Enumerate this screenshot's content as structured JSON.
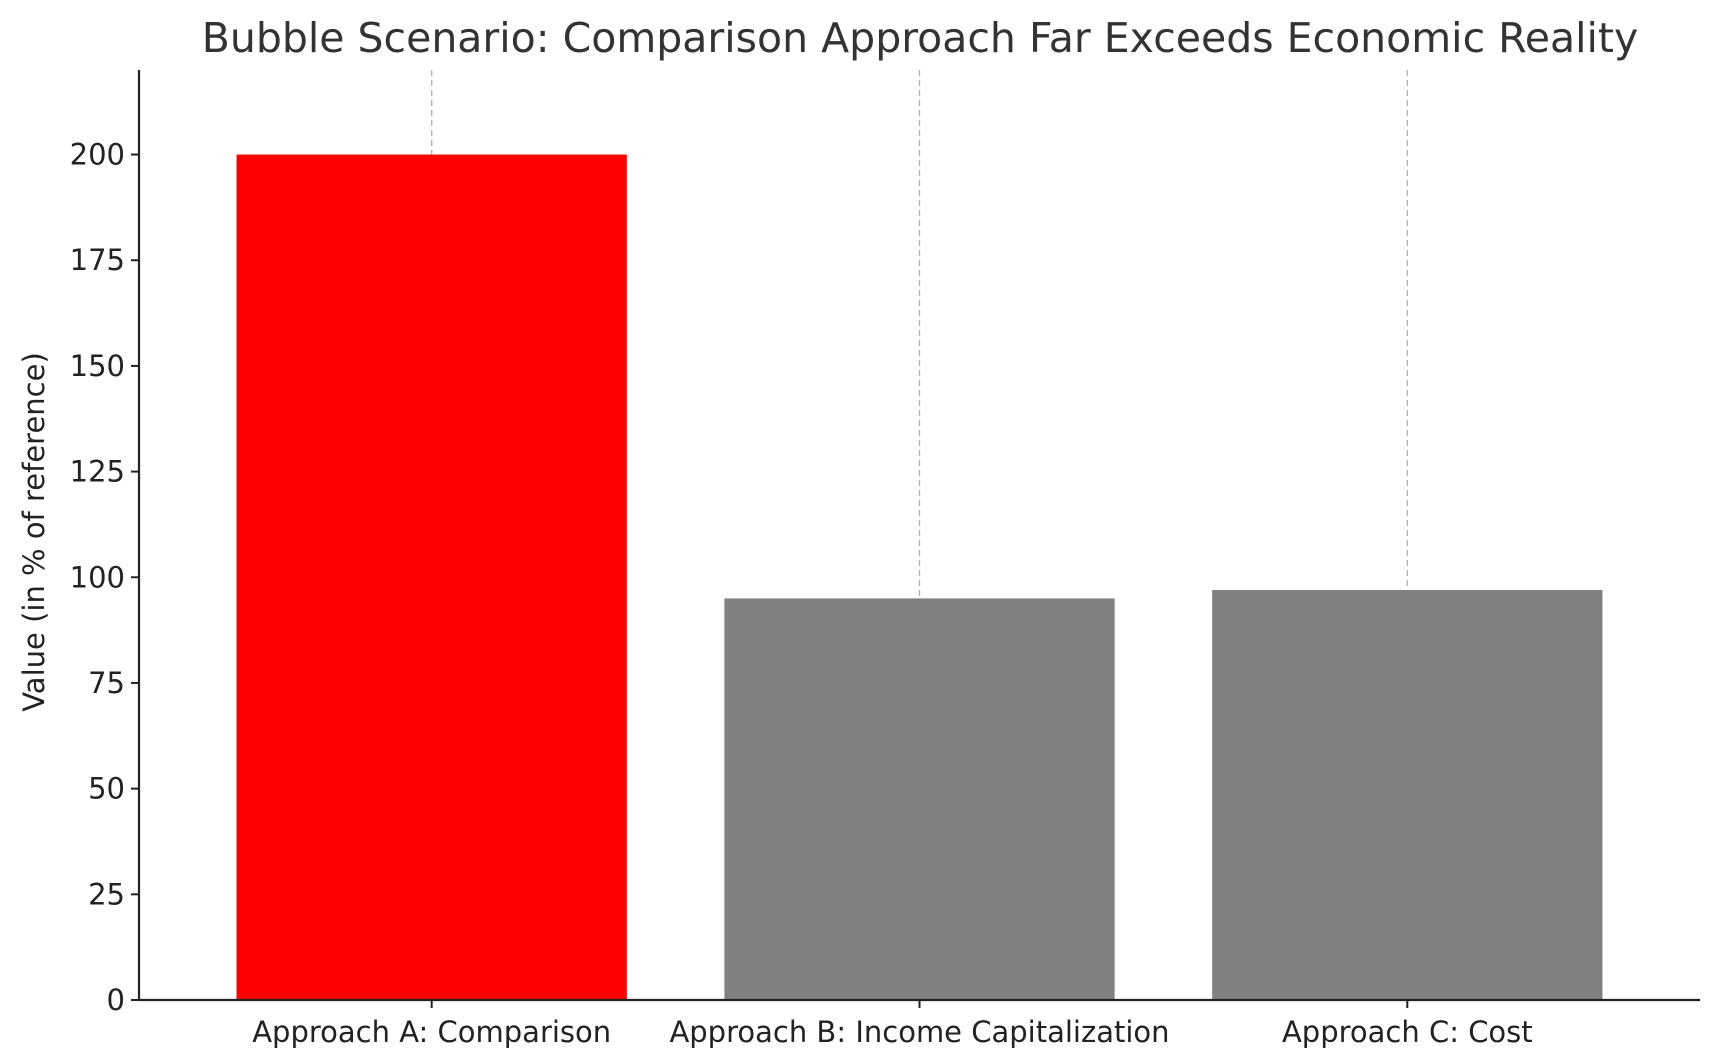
{
  "chart_data": {
    "type": "bar",
    "title": "Bubble Scenario: Comparison Approach Far Exceeds Economic Reality",
    "xlabel": "",
    "ylabel": "Value (in % of reference)",
    "categories": [
      "Approach A: Comparison",
      "Approach B: Income Capitalization",
      "Approach C: Cost"
    ],
    "values": [
      200,
      95,
      97
    ],
    "colors": [
      "#ff0000",
      "#808080",
      "#808080"
    ],
    "ylim": [
      0,
      220
    ],
    "yticks": [
      0,
      25,
      50,
      75,
      100,
      125,
      150,
      175,
      200
    ],
    "grid": "x-axis vertical dashed",
    "legend": "none"
  }
}
